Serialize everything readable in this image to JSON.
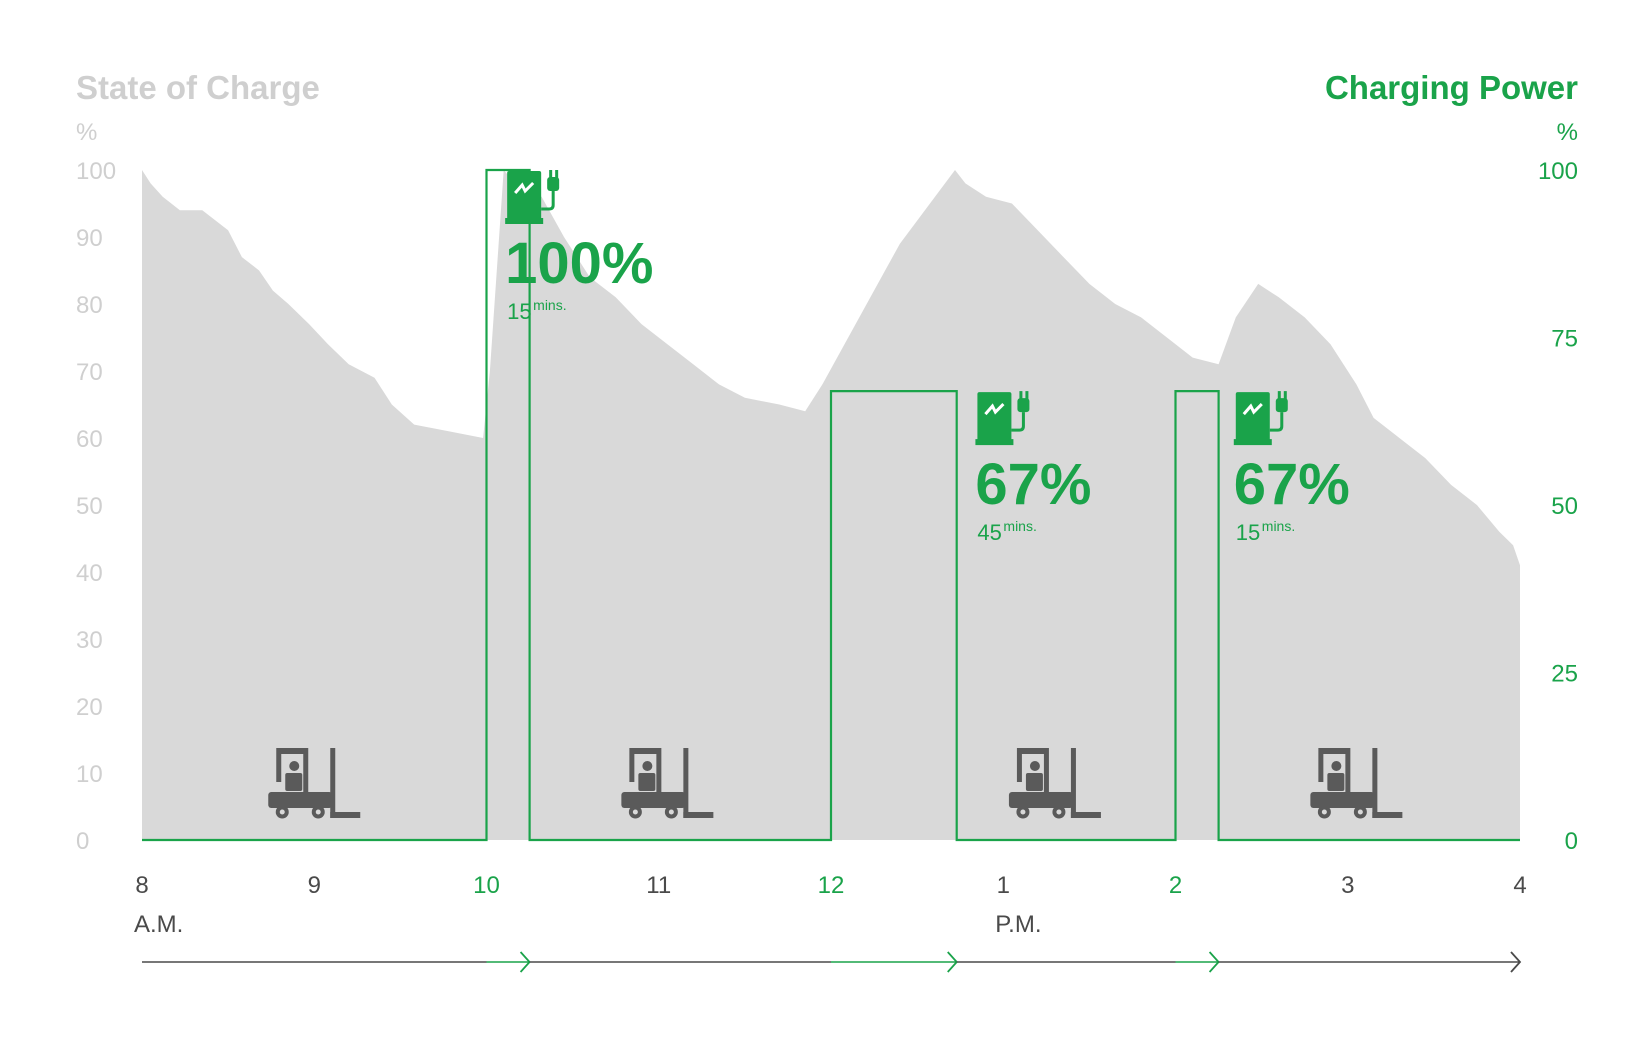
{
  "colors": {
    "green": "#1aa34a",
    "soc_fill": "#d9d9d9",
    "axis_gray": "#cfcfcf",
    "dark": "#4a4a4a",
    "forklift": "#5a5a5a",
    "white": "#ffffff"
  },
  "icons": {
    "charger": "ev-charger-icon",
    "forklift": "forklift-icon",
    "arrow": "chevron-right-icon"
  },
  "chart_data": {
    "type": "area",
    "title": "State of Charge",
    "title_right": "Charging Power",
    "left_unit": "%",
    "right_unit": "%",
    "ylim": [
      0,
      100
    ],
    "y2lim": [
      0,
      100
    ],
    "xlim": [
      8,
      16
    ],
    "left_ticks": [
      "0",
      "10",
      "20",
      "30",
      "40",
      "50",
      "60",
      "70",
      "80",
      "90",
      "100"
    ],
    "right_ticks": [
      "0",
      "25",
      "50",
      "75",
      "100"
    ],
    "x_ticks": [
      {
        "label": "8",
        "hour": 8,
        "highlight": false
      },
      {
        "label": "9",
        "hour": 9,
        "highlight": false
      },
      {
        "label": "10",
        "hour": 10,
        "highlight": true
      },
      {
        "label": "11",
        "hour": 11,
        "highlight": false
      },
      {
        "label": "12",
        "hour": 12,
        "highlight": true
      },
      {
        "label": "1",
        "hour": 13,
        "highlight": false
      },
      {
        "label": "2",
        "hour": 14,
        "highlight": true
      },
      {
        "label": "3",
        "hour": 15,
        "highlight": false
      },
      {
        "label": "4",
        "hour": 16,
        "highlight": false
      }
    ],
    "period_labels": [
      {
        "label": "A.M.",
        "hour": 8
      },
      {
        "label": "P.M.",
        "hour": 13
      }
    ],
    "series": [
      {
        "name": "State of Charge",
        "kind": "area",
        "points": [
          [
            8.0,
            100
          ],
          [
            8.05,
            98
          ],
          [
            8.12,
            96
          ],
          [
            8.22,
            94
          ],
          [
            8.35,
            94
          ],
          [
            8.5,
            91
          ],
          [
            8.58,
            87
          ],
          [
            8.68,
            85
          ],
          [
            8.76,
            82
          ],
          [
            8.85,
            80
          ],
          [
            8.97,
            77
          ],
          [
            9.08,
            74
          ],
          [
            9.2,
            71
          ],
          [
            9.35,
            69
          ],
          [
            9.45,
            65
          ],
          [
            9.58,
            62
          ],
          [
            9.78,
            61
          ],
          [
            9.98,
            60
          ],
          [
            10.02,
            70
          ],
          [
            10.1,
            100
          ],
          [
            10.2,
            97
          ],
          [
            10.32,
            96
          ],
          [
            10.45,
            90
          ],
          [
            10.6,
            84
          ],
          [
            10.75,
            81
          ],
          [
            10.9,
            77
          ],
          [
            11.05,
            74
          ],
          [
            11.2,
            71
          ],
          [
            11.35,
            68
          ],
          [
            11.5,
            66
          ],
          [
            11.7,
            65
          ],
          [
            11.85,
            64
          ],
          [
            11.95,
            68
          ],
          [
            12.4,
            89
          ],
          [
            12.72,
            100
          ],
          [
            12.78,
            98
          ],
          [
            12.9,
            96
          ],
          [
            13.05,
            95
          ],
          [
            13.2,
            91
          ],
          [
            13.35,
            87
          ],
          [
            13.5,
            83
          ],
          [
            13.65,
            80
          ],
          [
            13.8,
            78
          ],
          [
            13.95,
            75
          ],
          [
            14.1,
            72
          ],
          [
            14.25,
            71
          ],
          [
            14.35,
            78
          ],
          [
            14.48,
            83
          ],
          [
            14.6,
            81
          ],
          [
            14.75,
            78
          ],
          [
            14.9,
            74
          ],
          [
            15.05,
            68
          ],
          [
            15.15,
            63
          ],
          [
            15.3,
            60
          ],
          [
            15.45,
            57
          ],
          [
            15.6,
            53
          ],
          [
            15.75,
            50
          ],
          [
            15.88,
            46
          ],
          [
            15.96,
            44
          ],
          [
            16.0,
            41
          ]
        ]
      },
      {
        "name": "Charging Power",
        "kind": "step",
        "segments": [
          {
            "start": 10.0,
            "end": 10.25,
            "value": 100
          },
          {
            "start": 12.0,
            "end": 12.73,
            "value": 67
          },
          {
            "start": 14.0,
            "end": 14.25,
            "value": 67
          }
        ]
      }
    ],
    "charge_events": [
      {
        "percent": "100%",
        "duration": "15",
        "unit": "mins.",
        "anchor_hour": 10.12,
        "anchor_value": 100
      },
      {
        "percent": "67%",
        "duration": "45",
        "unit": "mins.",
        "anchor_hour": 12.85,
        "anchor_value": 67
      },
      {
        "percent": "67%",
        "duration": "15",
        "unit": "mins.",
        "anchor_hour": 14.35,
        "anchor_value": 67
      }
    ],
    "work_periods": [
      {
        "center_hour": 9.0
      },
      {
        "center_hour": 11.05
      },
      {
        "center_hour": 13.3
      },
      {
        "center_hour": 15.05
      }
    ],
    "timeline": [
      {
        "start": 8.0,
        "end": 10.0,
        "kind": "work"
      },
      {
        "start": 10.0,
        "end": 10.25,
        "kind": "charge"
      },
      {
        "start": 10.25,
        "end": 12.0,
        "kind": "work"
      },
      {
        "start": 12.0,
        "end": 12.73,
        "kind": "charge"
      },
      {
        "start": 12.73,
        "end": 14.0,
        "kind": "work"
      },
      {
        "start": 14.0,
        "end": 14.25,
        "kind": "charge"
      },
      {
        "start": 14.25,
        "end": 16.0,
        "kind": "work"
      }
    ],
    "grid": false,
    "legend": "none"
  }
}
